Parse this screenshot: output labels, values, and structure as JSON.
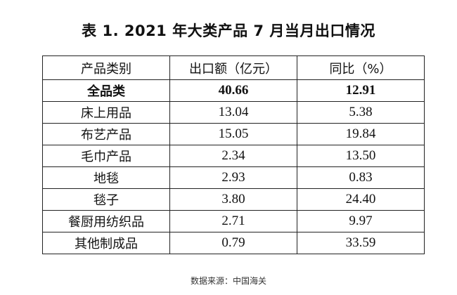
{
  "title": "表 1. 2021 年大类产品 7 月当月出口情况",
  "table": {
    "headers": [
      "产品类别",
      "出口额（亿元）",
      "同比（%）"
    ],
    "rows": [
      {
        "category": "全品类",
        "export": "40.66",
        "yoy": "12.91"
      },
      {
        "category": "床上用品",
        "export": "13.04",
        "yoy": "5.38"
      },
      {
        "category": "布艺产品",
        "export": "15.05",
        "yoy": "19.84"
      },
      {
        "category": "毛巾产品",
        "export": "2.34",
        "yoy": "13.50"
      },
      {
        "category": "地毯",
        "export": "2.93",
        "yoy": "0.83"
      },
      {
        "category": "毯子",
        "export": "3.80",
        "yoy": "24.40"
      },
      {
        "category": "餐厨用纺织品",
        "export": "2.71",
        "yoy": "9.97"
      },
      {
        "category": "其他制成品",
        "export": "0.79",
        "yoy": "33.59"
      }
    ]
  },
  "source": "数据来源：中国海关"
}
